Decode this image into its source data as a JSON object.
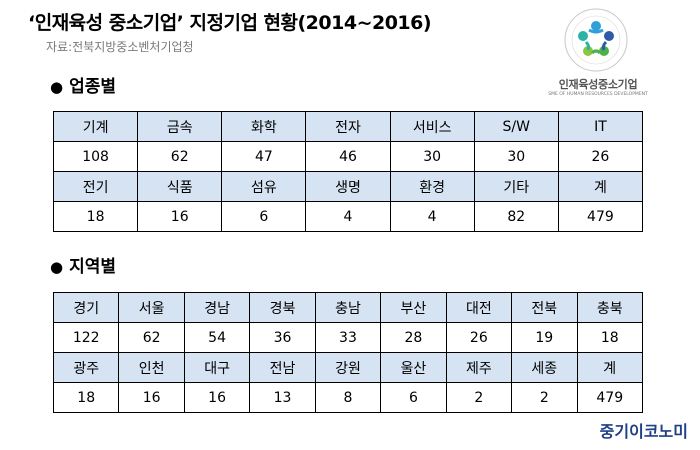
{
  "title": "‘인재육성 중소기업’ 지정기업 현황(2014~2016)",
  "source": "자료:전북지방중소벤처기업청",
  "logo": {
    "name": "인재육성중소기업",
    "eng": "SME OF HUMAN RESOURCES DEVELOPMENT",
    "ring_text": "SME OF HUMAN RESOURCES DEVELOPMENT · 인재육성중소기업"
  },
  "colors": {
    "header_fill": "#d6e3f3",
    "brand": "#1f3f88"
  },
  "section1": {
    "label": "업종별",
    "rows": [
      {
        "type": "header",
        "cells": [
          "기계",
          "금속",
          "화학",
          "전자",
          "서비스",
          "S/W",
          "IT"
        ]
      },
      {
        "type": "value",
        "cells": [
          "108",
          "62",
          "47",
          "46",
          "30",
          "30",
          "26"
        ]
      },
      {
        "type": "header",
        "cells": [
          "전기",
          "식품",
          "섬유",
          "생명",
          "환경",
          "기타",
          "계"
        ]
      },
      {
        "type": "value",
        "cells": [
          "18",
          "16",
          "6",
          "4",
          "4",
          "82",
          "479"
        ]
      }
    ]
  },
  "section2": {
    "label": "지역별",
    "rows": [
      {
        "type": "header",
        "cells": [
          "경기",
          "서울",
          "경남",
          "경북",
          "충남",
          "부산",
          "대전",
          "전북",
          "충북"
        ]
      },
      {
        "type": "value",
        "cells": [
          "122",
          "62",
          "54",
          "36",
          "33",
          "28",
          "26",
          "19",
          "18"
        ]
      },
      {
        "type": "header",
        "cells": [
          "광주",
          "인천",
          "대구",
          "전남",
          "강원",
          "울산",
          "제주",
          "세종",
          "계"
        ]
      },
      {
        "type": "value",
        "cells": [
          "18",
          "16",
          "16",
          "13",
          "8",
          "6",
          "2",
          "2",
          "479"
        ]
      }
    ]
  },
  "brand": "중기이코노미"
}
